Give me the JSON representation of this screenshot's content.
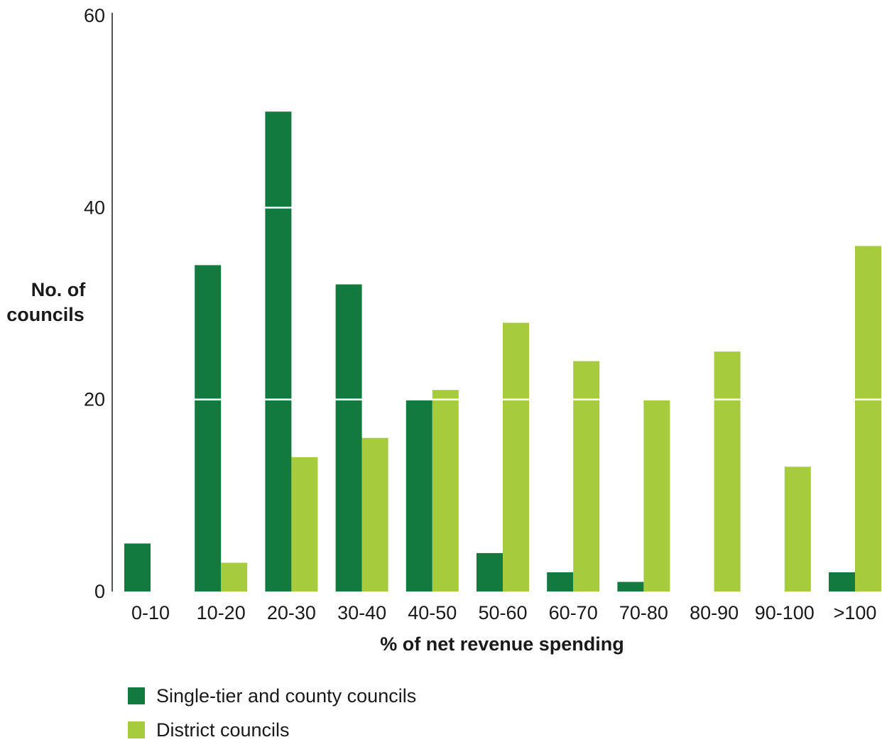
{
  "chart_data": {
    "type": "bar",
    "xlabel": "% of net revenue spending",
    "ylabel": "No. of councils",
    "ylim": [
      0,
      60
    ],
    "yticks": [
      0,
      20,
      40,
      60
    ],
    "grid": "white gridlines drawn over bars at 20 and 40",
    "legend_position": "bottom-left",
    "categories": [
      "0-10",
      "10-20",
      "20-30",
      "30-40",
      "40-50",
      "50-60",
      "60-70",
      "70-80",
      "80-90",
      "90-100",
      ">100"
    ],
    "series": [
      {
        "name": "Single-tier and county councils",
        "color": "#137a3f",
        "values": [
          5,
          34,
          50,
          32,
          20,
          4,
          2,
          1,
          0,
          0,
          2
        ]
      },
      {
        "name": "District councils",
        "color": "#a6cc3e",
        "values": [
          0,
          3,
          14,
          16,
          21,
          28,
          24,
          20,
          25,
          13,
          36
        ]
      }
    ]
  }
}
